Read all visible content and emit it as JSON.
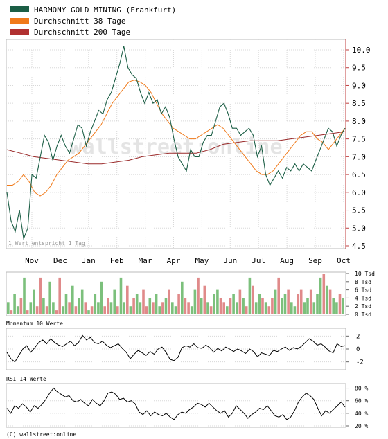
{
  "legend": [
    {
      "label": "HARMONY GOLD MINING (Frankfurt)",
      "color": "#1b5e45"
    },
    {
      "label": "Durchschnitt 38 Tage",
      "color": "#f07a1a"
    },
    {
      "label": "Durchschnitt 200 Tage",
      "color": "#b03030"
    }
  ],
  "watermark": "wallstreet:online",
  "note": "1 Wert entspricht 1 Tag",
  "copyright": "(C) wallstreet:online",
  "colors": {
    "price": "#1b5e45",
    "ma38": "#f07a1a",
    "ma200": "#9a2a2a",
    "volume_up": "#7cc07c",
    "volume_down": "#e08a8a",
    "grid": "#d8d8d8",
    "axis": "#c04040"
  },
  "chart_data": [
    {
      "type": "line",
      "id": "price",
      "x_ticks": [
        "Nov",
        "Dec",
        "Jan",
        "Feb",
        "Mar",
        "Apr",
        "May",
        "Jun",
        "Jul",
        "Aug",
        "Sep",
        "Oct"
      ],
      "ylim": [
        4.5,
        10.0
      ],
      "y_ticks": [
        4.5,
        5.0,
        5.5,
        6.0,
        6.5,
        7.0,
        7.5,
        8.0,
        8.5,
        9.0,
        9.5,
        10.0
      ],
      "series": [
        {
          "id": "price",
          "name": "HARMONY GOLD MINING (Frankfurt)",
          "values": [
            6.0,
            5.2,
            4.9,
            5.5,
            4.7,
            5.0,
            6.5,
            6.4,
            7.0,
            7.6,
            7.4,
            6.9,
            7.3,
            7.6,
            7.3,
            7.1,
            7.5,
            7.9,
            7.8,
            7.3,
            7.7,
            8.0,
            8.3,
            8.2,
            8.6,
            8.8,
            9.2,
            9.6,
            10.1,
            9.5,
            9.3,
            9.2,
            8.8,
            8.5,
            8.8,
            8.5,
            8.6,
            8.2,
            8.4,
            8.1,
            7.5,
            7.0,
            6.8,
            6.6,
            7.2,
            7.0,
            7.0,
            7.4,
            7.6,
            7.6,
            8.0,
            8.4,
            8.5,
            8.2,
            7.8,
            7.8,
            7.6,
            7.7,
            7.8,
            7.6,
            7.0,
            7.3,
            6.5,
            6.2,
            6.4,
            6.6,
            6.4,
            6.7,
            6.6,
            6.8,
            6.6,
            6.8,
            6.7,
            6.6,
            6.9,
            7.2,
            7.5,
            7.8,
            7.7,
            7.3,
            7.6,
            7.8
          ]
        },
        {
          "id": "ma38",
          "name": "Durchschnitt 38 Tage",
          "values": [
            6.2,
            6.2,
            6.3,
            6.5,
            6.3,
            6.0,
            5.9,
            6.0,
            6.2,
            6.5,
            6.7,
            6.9,
            7.0,
            7.1,
            7.3,
            7.5,
            7.7,
            7.9,
            8.2,
            8.5,
            8.7,
            8.9,
            9.1,
            9.15,
            9.1,
            9.0,
            8.8,
            8.5,
            8.2,
            8.0,
            7.8,
            7.7,
            7.6,
            7.5,
            7.5,
            7.6,
            7.7,
            7.8,
            7.9,
            7.8,
            7.6,
            7.4,
            7.2,
            7.0,
            6.8,
            6.6,
            6.5,
            6.5,
            6.6,
            6.8,
            7.0,
            7.2,
            7.4,
            7.6,
            7.7,
            7.7,
            7.5,
            7.4,
            7.2,
            7.4,
            7.6,
            7.8
          ]
        },
        {
          "id": "ma200",
          "name": "Durchschnitt 200 Tage",
          "values": [
            7.2,
            7.1,
            7.0,
            6.95,
            6.9,
            6.85,
            6.8,
            6.8,
            6.85,
            6.9,
            7.0,
            7.05,
            7.1,
            7.1,
            7.1,
            7.2,
            7.35,
            7.4,
            7.45,
            7.45,
            7.45,
            7.5,
            7.55,
            7.6,
            7.65,
            7.7
          ]
        }
      ]
    },
    {
      "type": "bar",
      "id": "volume",
      "ylim": [
        0,
        10
      ],
      "y_ticks": [
        0,
        2,
        4,
        6,
        8,
        10
      ],
      "y_tick_labels": [
        "0 Tsd",
        "2 Tsd",
        "4 Tsd",
        "6 Tsd",
        "8 Tsd",
        "10 Tsd"
      ],
      "values": [
        3,
        1,
        5,
        2,
        4,
        9,
        1,
        3,
        6,
        2,
        9,
        4,
        2,
        8,
        3,
        1,
        9,
        2,
        5,
        3,
        7,
        2,
        4,
        6,
        3,
        1,
        2,
        5,
        3,
        8,
        2,
        4,
        3,
        6,
        2,
        9,
        3,
        7,
        2,
        4,
        5,
        3,
        6,
        2,
        4,
        3,
        5,
        2,
        3,
        4,
        6,
        3,
        2,
        5,
        8,
        4,
        3,
        2,
        6,
        9,
        4,
        7,
        3,
        2,
        5,
        6,
        4,
        3,
        2,
        4,
        5,
        3,
        6,
        4,
        2,
        9,
        7,
        3,
        5,
        4,
        3,
        2,
        4,
        6,
        9,
        4,
        5,
        6,
        3,
        2,
        5,
        6,
        3,
        4,
        6,
        3,
        5,
        9,
        10,
        7,
        6,
        4,
        3,
        5,
        4
      ],
      "up": [
        1,
        0,
        1,
        1,
        0,
        1,
        0,
        1,
        1,
        0,
        0,
        1,
        0,
        1,
        1,
        0,
        0,
        1,
        1,
        0,
        1,
        0,
        1,
        1,
        0,
        1,
        0,
        1,
        1,
        1,
        0,
        0,
        1,
        1,
        0,
        1,
        1,
        0,
        1,
        0,
        1,
        1,
        0,
        0,
        1,
        0,
        1,
        1,
        0,
        1,
        0,
        1,
        1,
        0,
        1,
        0,
        0,
        1,
        1,
        0,
        1,
        0,
        1,
        0,
        1,
        1,
        0,
        0,
        1,
        0,
        1,
        1,
        0,
        1,
        0,
        1,
        0,
        1,
        1,
        0,
        1,
        0,
        0,
        1,
        0,
        1,
        1,
        0,
        1,
        1,
        0,
        0,
        1,
        1,
        0,
        1,
        1,
        1,
        0,
        1,
        0,
        1,
        1,
        0,
        1
      ]
    },
    {
      "type": "line",
      "id": "momentum",
      "title": "Momentum 10 Werte",
      "ylim": [
        -3,
        3
      ],
      "y_ticks": [
        -2,
        0,
        2
      ],
      "series": [
        {
          "name": "Momentum 10 Werte",
          "values": [
            -0.5,
            -1.5,
            -2.0,
            -1.0,
            0.0,
            0.5,
            -0.5,
            0.2,
            1.0,
            1.4,
            0.8,
            1.6,
            1.0,
            0.6,
            0.4,
            0.8,
            1.2,
            0.5,
            1.0,
            2.1,
            1.4,
            1.8,
            1.0,
            0.8,
            1.2,
            0.6,
            0.2,
            0.5,
            0.8,
            0.1,
            -0.5,
            -1.5,
            -0.8,
            -0.2,
            -0.6,
            -1.0,
            -0.4,
            -0.8,
            0.0,
            0.3,
            -0.5,
            -1.6,
            -1.8,
            -1.3,
            0.2,
            0.5,
            0.3,
            0.8,
            0.2,
            0.1,
            0.6,
            0.2,
            -0.5,
            0.1,
            -0.3,
            0.3,
            0.0,
            -0.4,
            0.0,
            -0.3,
            -0.7,
            0.0,
            -0.4,
            -1.2,
            -0.6,
            -0.8,
            -1.0,
            -0.2,
            -0.4,
            0.0,
            0.3,
            -0.2,
            0.2,
            0.0,
            0.4,
            1.0,
            1.6,
            1.2,
            0.6,
            0.8,
            0.3,
            -0.3,
            -0.6,
            0.8,
            0.4,
            0.5
          ]
        }
      ]
    },
    {
      "type": "line",
      "id": "rsi",
      "title": "RSI 14 Werte",
      "ylim": [
        20,
        85
      ],
      "y_ticks": [
        20,
        40,
        60,
        80
      ],
      "y_tick_labels": [
        "20 %",
        "40 %",
        "60 %",
        "80 %"
      ],
      "series": [
        {
          "name": "RSI 14 Werte",
          "values": [
            48,
            40,
            52,
            48,
            55,
            50,
            42,
            52,
            48,
            54,
            62,
            72,
            80,
            74,
            70,
            66,
            68,
            60,
            58,
            62,
            56,
            52,
            62,
            56,
            52,
            60,
            72,
            74,
            70,
            62,
            64,
            58,
            60,
            55,
            42,
            38,
            44,
            36,
            42,
            38,
            36,
            40,
            34,
            30,
            38,
            42,
            40,
            46,
            50,
            56,
            54,
            50,
            56,
            50,
            44,
            40,
            44,
            34,
            40,
            52,
            46,
            40,
            32,
            38,
            42,
            48,
            46,
            52,
            44,
            36,
            34,
            38,
            30,
            34,
            44,
            58,
            66,
            72,
            68,
            62,
            48,
            36,
            44,
            40,
            46,
            52,
            58,
            50
          ]
        }
      ]
    }
  ]
}
